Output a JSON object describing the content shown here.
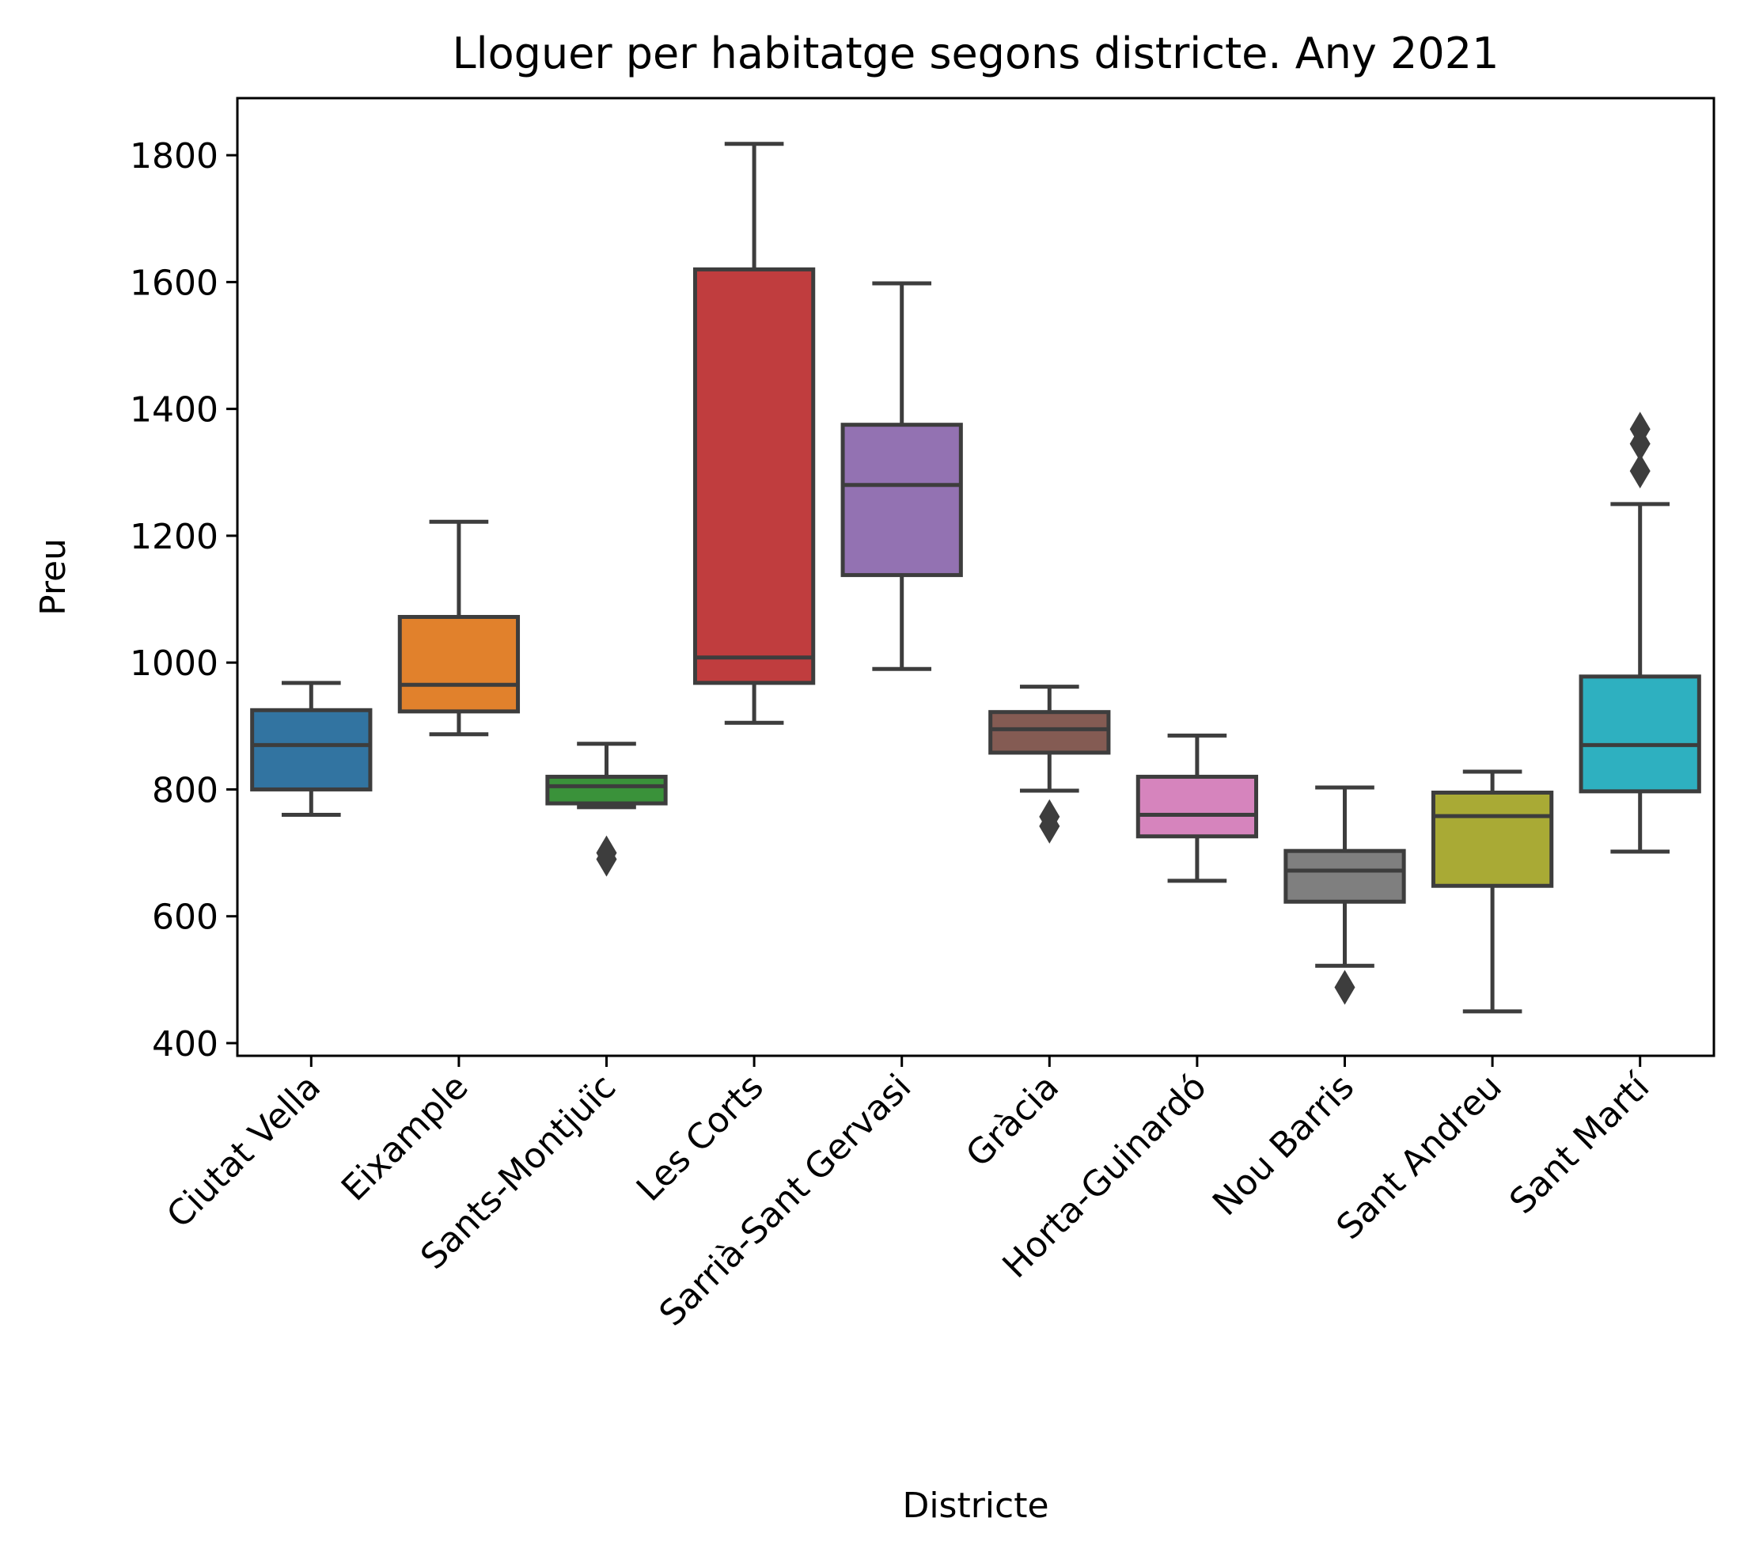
{
  "chart_data": {
    "type": "box",
    "title": "Lloguer per habitatge segons districte. Any 2021",
    "xlabel": "Districte",
    "ylabel": "Preu",
    "ylim": [
      380,
      1890
    ],
    "yticks": [
      400,
      600,
      800,
      1000,
      1200,
      1400,
      1600,
      1800
    ],
    "categories": [
      "Ciutat Vella",
      "Eixample",
      "Sants-Montjuïc",
      "Les Corts",
      "Sarrià-Sant Gervasi",
      "Gràcia",
      "Horta-Guinardó",
      "Nou Barris",
      "Sant Andreu",
      "Sant Martí"
    ],
    "colors": [
      "#3274a1",
      "#e1812c",
      "#3a923a",
      "#c03d3e",
      "#9372b2",
      "#845b53",
      "#d684bd",
      "#7f7f7f",
      "#a9aa35",
      "#2eb0c0"
    ],
    "edge_color": "#3d3d3d",
    "boxes": [
      {
        "whisker_low": 760,
        "q1": 800,
        "median": 870,
        "q3": 925,
        "whisker_high": 968,
        "outliers": []
      },
      {
        "whisker_low": 887,
        "q1": 923,
        "median": 965,
        "q3": 1072,
        "whisker_high": 1222,
        "outliers": []
      },
      {
        "whisker_low": 772,
        "q1": 778,
        "median": 805,
        "q3": 820,
        "whisker_high": 872,
        "outliers": [
          690,
          700
        ]
      },
      {
        "whisker_low": 905,
        "q1": 968,
        "median": 1008,
        "q3": 1620,
        "whisker_high": 1818,
        "outliers": []
      },
      {
        "whisker_low": 990,
        "q1": 1138,
        "median": 1280,
        "q3": 1375,
        "whisker_high": 1598,
        "outliers": []
      },
      {
        "whisker_low": 798,
        "q1": 858,
        "median": 895,
        "q3": 922,
        "whisker_high": 962,
        "outliers": [
          742,
          757
        ]
      },
      {
        "whisker_low": 656,
        "q1": 726,
        "median": 760,
        "q3": 820,
        "whisker_high": 885,
        "outliers": []
      },
      {
        "whisker_low": 522,
        "q1": 623,
        "median": 672,
        "q3": 703,
        "whisker_high": 803,
        "outliers": [
          488
        ]
      },
      {
        "whisker_low": 450,
        "q1": 648,
        "median": 758,
        "q3": 795,
        "whisker_high": 828,
        "outliers": []
      },
      {
        "whisker_low": 702,
        "q1": 797,
        "median": 870,
        "q3": 978,
        "whisker_high": 1250,
        "outliers": [
          1302,
          1345,
          1368
        ]
      }
    ]
  }
}
